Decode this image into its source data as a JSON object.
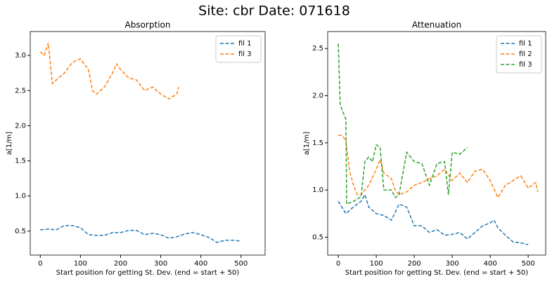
{
  "title": "Site: cbr Date: 071618",
  "chart_data": [
    {
      "type": "line",
      "title": "Absorption",
      "x_label": "Start position for getting St. Dev. (end = start + 50)",
      "y_label": "a[1/m]",
      "xlim": [
        -25,
        560
      ],
      "ylim": [
        0.16,
        3.34
      ],
      "xticks": [
        0,
        100,
        200,
        300,
        400,
        500
      ],
      "yticks": [
        0.5,
        {
          "value": 1,
          "label": "1.0"
        },
        1.5,
        {
          "value": 2,
          "label": "2.0"
        },
        2.5,
        {
          "value": 3,
          "label": "3.0"
        }
      ],
      "legend": "upper right",
      "series": [
        {
          "name": "fil 1",
          "color": "#1f77b4",
          "x": [
            0,
            20,
            40,
            60,
            80,
            100,
            120,
            140,
            160,
            180,
            200,
            220,
            240,
            260,
            280,
            300,
            320,
            340,
            360,
            380,
            400,
            420,
            440,
            460,
            480,
            500
          ],
          "values": [
            0.52,
            0.53,
            0.52,
            0.58,
            0.58,
            0.55,
            0.45,
            0.44,
            0.44,
            0.48,
            0.48,
            0.51,
            0.51,
            0.45,
            0.47,
            0.45,
            0.4,
            0.42,
            0.46,
            0.48,
            0.45,
            0.41,
            0.34,
            0.37,
            0.37,
            0.36
          ]
        },
        {
          "name": "fil 3",
          "color": "#ff7f0e",
          "x": [
            0,
            10,
            20,
            30,
            40,
            60,
            80,
            100,
            120,
            130,
            140,
            160,
            180,
            190,
            200,
            220,
            240,
            260,
            280,
            300,
            320,
            340,
            345
          ],
          "values": [
            3.05,
            3.0,
            3.18,
            2.6,
            2.65,
            2.75,
            2.9,
            2.95,
            2.8,
            2.5,
            2.45,
            2.55,
            2.75,
            2.88,
            2.8,
            2.68,
            2.65,
            2.5,
            2.55,
            2.45,
            2.38,
            2.45,
            2.55
          ]
        }
      ]
    },
    {
      "type": "line",
      "title": "Attenuation",
      "x_label": "Start position for getting St. Dev. (end = start + 50)",
      "y_label": "a[1/m]",
      "xlim": [
        -28,
        546
      ],
      "ylim": [
        0.31,
        2.68
      ],
      "xticks": [
        0,
        100,
        200,
        300,
        400,
        500
      ],
      "yticks": [
        0.5,
        {
          "value": 1,
          "label": "1.0"
        },
        1.5,
        {
          "value": 2,
          "label": "2.0"
        },
        2.5
      ],
      "legend": "upper right",
      "series": [
        {
          "name": "fil 1",
          "color": "#1f77b4",
          "x": [
            0,
            20,
            40,
            60,
            70,
            80,
            100,
            120,
            140,
            160,
            180,
            200,
            220,
            240,
            260,
            280,
            300,
            320,
            340,
            360,
            380,
            400,
            410,
            420,
            440,
            460,
            480,
            500
          ],
          "values": [
            0.88,
            0.75,
            0.82,
            0.88,
            0.95,
            0.82,
            0.75,
            0.73,
            0.68,
            0.85,
            0.82,
            0.62,
            0.62,
            0.55,
            0.58,
            0.52,
            0.53,
            0.55,
            0.48,
            0.55,
            0.62,
            0.65,
            0.68,
            0.6,
            0.52,
            0.45,
            0.44,
            0.42
          ]
        },
        {
          "name": "fil 2",
          "color": "#ff7f0e",
          "x": [
            0,
            10,
            20,
            30,
            40,
            50,
            60,
            80,
            100,
            110,
            120,
            140,
            150,
            160,
            180,
            200,
            220,
            240,
            260,
            280,
            300,
            320,
            340,
            360,
            380,
            400,
            420,
            440,
            460,
            480,
            500,
            520,
            525
          ],
          "values": [
            1.58,
            1.58,
            1.52,
            1.2,
            1.05,
            0.95,
            0.95,
            1.05,
            1.22,
            1.32,
            1.18,
            1.12,
            1.0,
            0.95,
            0.98,
            1.05,
            1.08,
            1.12,
            1.15,
            1.22,
            1.1,
            1.18,
            1.08,
            1.2,
            1.22,
            1.1,
            0.92,
            1.05,
            1.1,
            1.15,
            1.02,
            1.08,
            0.98
          ]
        },
        {
          "name": "fil 3",
          "color": "#2ca02c",
          "x": [
            0,
            5,
            10,
            20,
            22,
            40,
            60,
            70,
            80,
            90,
            100,
            110,
            120,
            140,
            150,
            160,
            180,
            200,
            220,
            240,
            260,
            280,
            290,
            300,
            320,
            340
          ],
          "values": [
            2.55,
            1.9,
            1.85,
            1.75,
            0.85,
            0.88,
            0.93,
            1.3,
            1.35,
            1.3,
            1.48,
            1.45,
            1.0,
            1.0,
            0.92,
            0.95,
            1.4,
            1.3,
            1.28,
            1.05,
            1.28,
            1.3,
            0.95,
            1.4,
            1.38,
            1.45
          ]
        }
      ]
    }
  ]
}
